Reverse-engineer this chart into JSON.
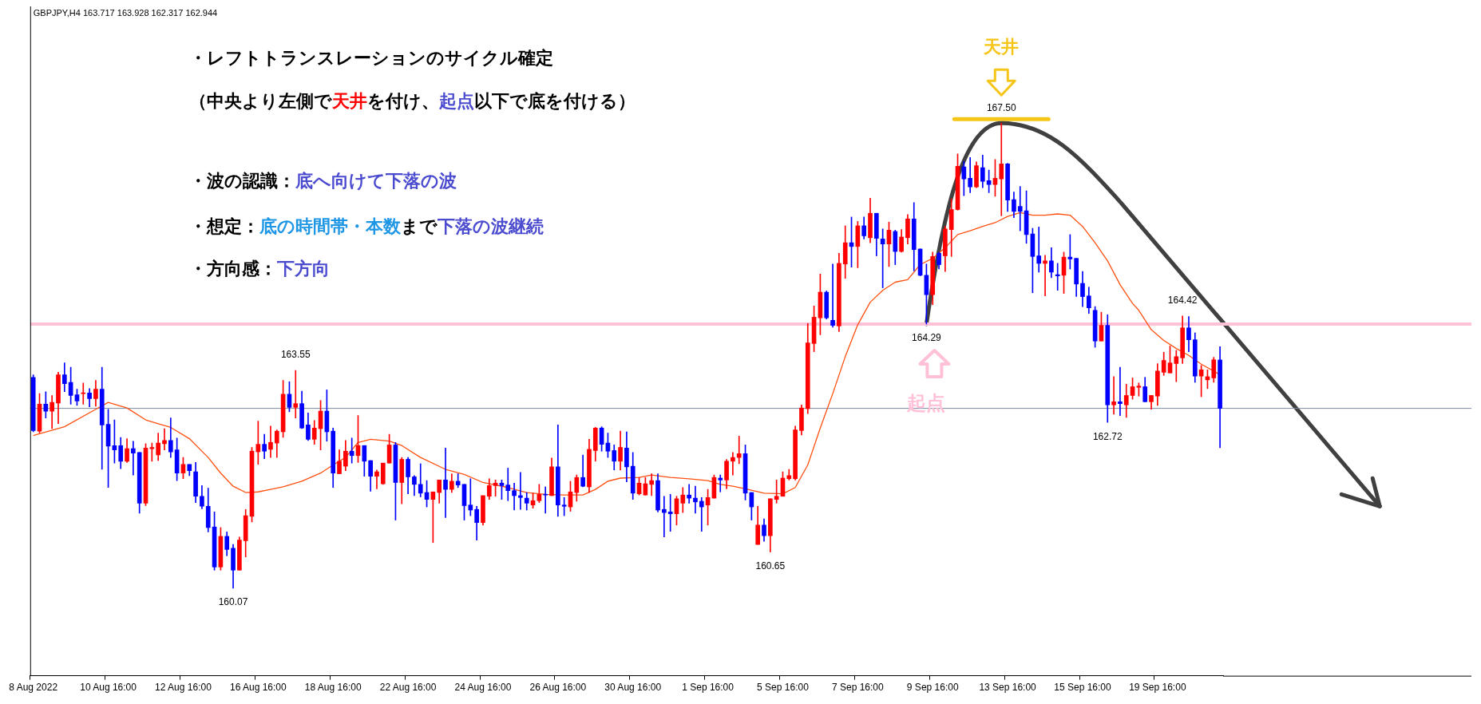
{
  "chart_data": {
    "type": "candlestick",
    "annotations": [
      "GBPJPY,H4 163.717 163.928 162.317 162.944",
      "・レフトトランスレーションのサイクル確定",
      "（中央より左側で",
      "天井",
      "を付け、",
      "起点",
      "以下で底を付ける）",
      "・波の認識：",
      "底へ向けて下落の波",
      "・想定：",
      "底の時間帯・本数",
      "まで",
      "下落の波継続",
      "・方向感：",
      "下方向",
      "天井",
      "起点",
      {
        "text": "167.50",
        "y": 167.5
      },
      {
        "text": "164.29",
        "y": 164.29
      },
      {
        "text": "163.55",
        "y": 163.55
      },
      {
        "text": "160.07",
        "y": 160.07
      },
      {
        "text": "160.65",
        "y": 160.65
      },
      {
        "text": "162.72",
        "y": 162.72
      },
      {
        "text": "164.42",
        "y": 164.42
      }
    ],
    "categories": [
      "8 Aug 2022",
      null,
      null,
      null,
      null,
      null,
      null,
      null,
      null,
      null,
      null,
      null,
      "10 Aug 16:00",
      null,
      null,
      null,
      null,
      null,
      null,
      null,
      null,
      null,
      null,
      null,
      "12 Aug 16:00",
      null,
      null,
      null,
      null,
      null,
      null,
      null,
      null,
      null,
      null,
      null,
      "16 Aug 16:00",
      null,
      null,
      null,
      null,
      null,
      null,
      null,
      null,
      null,
      null,
      null,
      "18 Aug 16:00",
      null,
      null,
      null,
      null,
      null,
      null,
      null,
      null,
      null,
      null,
      null,
      "22 Aug 16:00",
      null,
      null,
      null,
      null,
      null,
      null,
      null,
      null,
      null,
      null,
      null,
      "24 Aug 16:00",
      null,
      null,
      null,
      null,
      null,
      null,
      null,
      null,
      null,
      null,
      null,
      "26 Aug 16:00",
      null,
      null,
      null,
      null,
      null,
      null,
      null,
      null,
      null,
      null,
      null,
      "30 Aug 16:00",
      null,
      null,
      null,
      null,
      null,
      null,
      null,
      null,
      null,
      null,
      null,
      "1 Sep 16:00",
      null,
      null,
      null,
      null,
      null,
      null,
      null,
      null,
      null,
      null,
      null,
      "5 Sep 16:00",
      null,
      null,
      null,
      null,
      null,
      null,
      null,
      null,
      null,
      null,
      null,
      "7 Sep 16:00",
      null,
      null,
      null,
      null,
      null,
      null,
      null,
      null,
      null,
      null,
      null,
      "9 Sep 16:00",
      null,
      null,
      null,
      null,
      null,
      null,
      null,
      null,
      null,
      null,
      null,
      "13 Sep 16:00",
      null,
      null,
      null,
      null,
      null,
      null,
      null,
      null,
      null,
      null,
      null,
      "15 Sep 16:00",
      null,
      null,
      null,
      null,
      null,
      null,
      null,
      null,
      null,
      null,
      null,
      "19 Sep 16:00",
      null,
      null,
      null,
      null,
      null,
      null,
      null,
      null,
      null,
      null
    ],
    "ohlc": [
      [
        163.44,
        163.48,
        162.57,
        162.59
      ],
      [
        162.58,
        163.18,
        162.55,
        163.01
      ],
      [
        163.01,
        163.21,
        162.79,
        162.9
      ],
      [
        162.9,
        163.15,
        162.62,
        163.04
      ],
      [
        163.03,
        163.52,
        162.7,
        163.48
      ],
      [
        163.48,
        163.67,
        163.21,
        163.34
      ],
      [
        163.36,
        163.6,
        163.01,
        163.15
      ],
      [
        163.16,
        163.25,
        162.99,
        163.06
      ],
      [
        163.18,
        163.35,
        163.01,
        163.19
      ],
      [
        163.19,
        163.26,
        162.97,
        163.1
      ],
      [
        163.1,
        163.39,
        162.98,
        163.25
      ],
      [
        163.25,
        163.6,
        161.97,
        162.68
      ],
      [
        162.69,
        162.93,
        161.68,
        162.34
      ],
      [
        162.35,
        162.76,
        162.07,
        162.28
      ],
      [
        162.35,
        162.48,
        161.98,
        162.1
      ],
      [
        162.1,
        162.46,
        162.08,
        162.3
      ],
      [
        162.3,
        162.42,
        161.88,
        162.23
      ],
      [
        162.24,
        162.24,
        161.27,
        161.43
      ],
      [
        161.43,
        162.38,
        161.39,
        162.31
      ],
      [
        162.3,
        162.39,
        162.1,
        162.32
      ],
      [
        162.2,
        162.55,
        162.11,
        162.39
      ],
      [
        162.38,
        162.62,
        162.28,
        162.43
      ],
      [
        162.43,
        162.79,
        162.16,
        162.25
      ],
      [
        162.28,
        162.47,
        161.79,
        161.91
      ],
      [
        161.91,
        162.16,
        161.82,
        162.05
      ],
      [
        162.05,
        162.05,
        161.87,
        161.95
      ],
      [
        161.93,
        162.08,
        161.44,
        161.54
      ],
      [
        161.54,
        161.71,
        161.34,
        161.38
      ],
      [
        161.38,
        161.67,
        160.97,
        161.04
      ],
      [
        161.05,
        161.29,
        160.36,
        160.41
      ],
      [
        160.41,
        161.04,
        160.36,
        160.9
      ],
      [
        160.9,
        160.97,
        160.59,
        160.69
      ],
      [
        160.71,
        160.77,
        160.07,
        160.36
      ],
      [
        160.36,
        160.89,
        160.36,
        160.84
      ],
      [
        160.83,
        161.33,
        160.57,
        161.23
      ],
      [
        161.22,
        162.32,
        161.13,
        162.26
      ],
      [
        162.25,
        162.74,
        162.05,
        162.37
      ],
      [
        162.37,
        162.53,
        162.14,
        162.26
      ],
      [
        162.29,
        162.66,
        162.16,
        162.4
      ],
      [
        162.39,
        162.6,
        162.16,
        162.58
      ],
      [
        162.57,
        163.39,
        162.48,
        163.17
      ],
      [
        163.17,
        163.37,
        162.89,
        162.96
      ],
      [
        162.96,
        163.55,
        162.79,
        163.02
      ],
      [
        163.02,
        163.22,
        162.62,
        162.63
      ],
      [
        162.68,
        162.87,
        162.43,
        162.45
      ],
      [
        162.45,
        162.75,
        162.37,
        162.63
      ],
      [
        162.62,
        163.07,
        162.28,
        162.9
      ],
      [
        162.9,
        163.24,
        162.42,
        162.57
      ],
      [
        162.58,
        162.63,
        161.68,
        161.91
      ],
      [
        161.9,
        162.28,
        161.9,
        162.1
      ],
      [
        162.02,
        162.43,
        161.95,
        162.26
      ],
      [
        162.26,
        162.47,
        162.07,
        162.19
      ],
      [
        162.19,
        162.83,
        162.08,
        162.35
      ],
      [
        162.35,
        162.35,
        161.86,
        162.1
      ],
      [
        162.11,
        162.11,
        161.62,
        161.86
      ],
      [
        161.86,
        161.96,
        161.66,
        161.93
      ],
      [
        161.74,
        162.07,
        161.73,
        162.07
      ],
      [
        162.07,
        162.53,
        162.07,
        162.36
      ],
      [
        162.36,
        162.4,
        161.16,
        161.76
      ],
      [
        161.76,
        162.16,
        161.42,
        162.13
      ],
      [
        162.13,
        162.16,
        161.58,
        161.85
      ],
      [
        161.85,
        161.87,
        161.55,
        161.73
      ],
      [
        161.73,
        162.06,
        161.53,
        161.59
      ],
      [
        161.6,
        161.79,
        161.37,
        161.49
      ],
      [
        161.49,
        161.61,
        160.8,
        161.61
      ],
      [
        161.6,
        161.8,
        161.43,
        161.8
      ],
      [
        161.8,
        162.31,
        161.2,
        161.65
      ],
      [
        161.65,
        161.9,
        161.6,
        161.78
      ],
      [
        161.78,
        161.9,
        161.68,
        161.72
      ],
      [
        161.73,
        161.73,
        161.16,
        161.39
      ],
      [
        161.4,
        161.82,
        161.23,
        161.32
      ],
      [
        161.33,
        161.38,
        160.84,
        161.12
      ],
      [
        161.12,
        161.55,
        161.08,
        161.55
      ],
      [
        161.54,
        161.82,
        161.49,
        161.71
      ],
      [
        161.71,
        161.8,
        161.54,
        161.75
      ],
      [
        161.75,
        161.8,
        161.49,
        161.71
      ],
      [
        161.72,
        161.99,
        161.47,
        161.63
      ],
      [
        161.63,
        161.75,
        161.32,
        161.55
      ],
      [
        161.55,
        161.92,
        161.33,
        161.52
      ],
      [
        161.51,
        161.6,
        161.32,
        161.43
      ],
      [
        161.4,
        161.59,
        161.35,
        161.47
      ],
      [
        161.47,
        161.73,
        161.44,
        161.57
      ],
      [
        161.57,
        161.69,
        161.27,
        161.56
      ],
      [
        161.55,
        162.15,
        161.55,
        162.01
      ],
      [
        162.01,
        162.68,
        161.22,
        161.4
      ],
      [
        161.4,
        161.52,
        161.23,
        161.38
      ],
      [
        161.37,
        161.78,
        161.3,
        161.61
      ],
      [
        161.6,
        161.88,
        161.46,
        161.84
      ],
      [
        161.84,
        162.2,
        161.69,
        161.7
      ],
      [
        161.69,
        162.45,
        161.6,
        162.29
      ],
      [
        162.27,
        162.64,
        162.1,
        162.63
      ],
      [
        162.63,
        162.65,
        162.26,
        162.37
      ],
      [
        162.39,
        162.55,
        162.16,
        162.26
      ],
      [
        162.27,
        162.36,
        161.96,
        162.1
      ],
      [
        162.1,
        162.58,
        161.96,
        162.32
      ],
      [
        162.31,
        162.57,
        161.77,
        162.01
      ],
      [
        162.02,
        162.24,
        161.49,
        161.59
      ],
      [
        161.58,
        161.84,
        161.56,
        161.75
      ],
      [
        161.56,
        161.84,
        161.56,
        161.74
      ],
      [
        161.73,
        161.9,
        161.55,
        161.79
      ],
      [
        161.79,
        161.9,
        161.29,
        161.32
      ],
      [
        161.33,
        161.54,
        160.89,
        161.28
      ],
      [
        161.29,
        161.57,
        160.98,
        161.26
      ],
      [
        161.26,
        161.54,
        161.08,
        161.5
      ],
      [
        161.43,
        161.68,
        161.28,
        161.56
      ],
      [
        161.56,
        161.73,
        161.43,
        161.51
      ],
      [
        161.51,
        161.7,
        161.27,
        161.45
      ],
      [
        161.46,
        161.52,
        160.98,
        161.37
      ],
      [
        161.4,
        161.65,
        161.08,
        161.52
      ],
      [
        161.51,
        161.88,
        161.51,
        161.84
      ],
      [
        161.83,
        161.88,
        161.61,
        161.8
      ],
      [
        161.8,
        162.13,
        161.66,
        162.1
      ],
      [
        162.1,
        162.24,
        161.88,
        162.16
      ],
      [
        162.16,
        162.5,
        162.06,
        162.22
      ],
      [
        162.22,
        162.36,
        161.48,
        161.59
      ],
      [
        161.6,
        161.6,
        161.16,
        161.37
      ],
      [
        160.77,
        161.38,
        160.77,
        161.08
      ],
      [
        161.08,
        161.18,
        160.82,
        160.91
      ],
      [
        160.91,
        161.5,
        160.65,
        161.5
      ],
      [
        161.49,
        161.8,
        161.43,
        161.54
      ],
      [
        161.54,
        161.93,
        161.54,
        161.83
      ],
      [
        161.82,
        161.97,
        161.8,
        161.87
      ],
      [
        161.82,
        162.66,
        161.8,
        162.6
      ],
      [
        162.59,
        163.0,
        162.52,
        162.95
      ],
      [
        162.94,
        164.3,
        162.86,
        163.99
      ],
      [
        163.98,
        164.58,
        163.85,
        164.4
      ],
      [
        164.39,
        165.09,
        164.12,
        164.8
      ],
      [
        164.8,
        164.82,
        164.37,
        164.39
      ],
      [
        164.35,
        165.25,
        164.24,
        164.27
      ],
      [
        164.26,
        165.42,
        164.17,
        165.26
      ],
      [
        165.25,
        165.86,
        165.02,
        165.59
      ],
      [
        165.59,
        166.0,
        165.2,
        165.53
      ],
      [
        165.53,
        165.93,
        165.19,
        165.86
      ],
      [
        165.86,
        166.0,
        165.65,
        165.7
      ],
      [
        165.67,
        166.3,
        165.59,
        166.06
      ],
      [
        166.06,
        166.06,
        165.38,
        165.66
      ],
      [
        165.65,
        165.81,
        164.87,
        165.57
      ],
      [
        165.57,
        165.92,
        165.21,
        165.79
      ],
      [
        165.77,
        165.79,
        165.24,
        165.45
      ],
      [
        165.45,
        165.8,
        165.44,
        165.68
      ],
      [
        165.67,
        166.04,
        165.57,
        165.97
      ],
      [
        165.97,
        166.23,
        165.14,
        165.48
      ],
      [
        165.49,
        165.49,
        165.06,
        165.07
      ],
      [
        165.07,
        165.25,
        164.29,
        164.76
      ],
      [
        164.76,
        165.44,
        164.6,
        165.37
      ],
      [
        165.42,
        165.44,
        165.17,
        165.24
      ],
      [
        165.38,
        165.85,
        165.13,
        165.81
      ],
      [
        165.8,
        166.29,
        165.37,
        166.12
      ],
      [
        166.12,
        167.01,
        166.11,
        166.81
      ],
      [
        166.8,
        166.89,
        166.34,
        166.61
      ],
      [
        166.62,
        166.95,
        166.39,
        166.48
      ],
      [
        166.48,
        166.88,
        166.47,
        166.82
      ],
      [
        166.79,
        166.99,
        166.47,
        166.57
      ],
      [
        166.58,
        166.75,
        166.39,
        166.52
      ],
      [
        166.52,
        166.92,
        166.33,
        166.62
      ],
      [
        166.61,
        167.5,
        166.02,
        166.85
      ],
      [
        166.85,
        166.86,
        166.09,
        166.27
      ],
      [
        166.28,
        166.4,
        165.99,
        166.09
      ],
      [
        166.17,
        166.49,
        165.78,
        166.09
      ],
      [
        166.1,
        166.42,
        165.58,
        165.72
      ],
      [
        165.73,
        165.82,
        164.79,
        165.37
      ],
      [
        165.38,
        165.84,
        165.12,
        165.26
      ],
      [
        165.26,
        165.39,
        164.74,
        165.3
      ],
      [
        165.3,
        165.51,
        165.03,
        165.12
      ],
      [
        165.08,
        165.26,
        164.83,
        165.06
      ],
      [
        165.07,
        165.44,
        164.78,
        165.36
      ],
      [
        165.36,
        165.72,
        165.17,
        165.33
      ],
      [
        165.34,
        165.34,
        164.73,
        164.93
      ],
      [
        164.94,
        165.13,
        164.57,
        164.73
      ],
      [
        164.74,
        164.88,
        164.46,
        164.55
      ],
      [
        164.51,
        164.57,
        163.92,
        164.02
      ],
      [
        164.02,
        164.48,
        164.02,
        164.27
      ],
      [
        164.27,
        164.44,
        162.72,
        163.0
      ],
      [
        163.0,
        163.45,
        162.85,
        163.05
      ],
      [
        163.05,
        163.6,
        162.83,
        163.02
      ],
      [
        163.0,
        163.33,
        162.8,
        163.15
      ],
      [
        163.15,
        163.43,
        163.09,
        163.29
      ],
      [
        163.28,
        163.35,
        163.14,
        163.3
      ],
      [
        163.29,
        163.44,
        163.05,
        163.05
      ],
      [
        163.05,
        163.15,
        162.93,
        163.15
      ],
      [
        163.14,
        163.66,
        162.99,
        163.54
      ],
      [
        163.52,
        163.84,
        163.47,
        163.71
      ],
      [
        163.51,
        163.94,
        163.51,
        163.67
      ],
      [
        163.66,
        163.87,
        163.37,
        163.77
      ],
      [
        163.75,
        164.42,
        163.66,
        164.23
      ],
      [
        164.23,
        164.41,
        163.85,
        164.04
      ],
      [
        164.04,
        164.15,
        163.36,
        163.46
      ],
      [
        163.46,
        163.63,
        163.13,
        163.56
      ],
      [
        163.4,
        163.56,
        163.26,
        163.45
      ],
      [
        163.43,
        163.76,
        163.36,
        163.72
      ],
      [
        163.717,
        163.928,
        162.317,
        162.944
      ]
    ],
    "colors": [
      "#0000ff",
      "#ff0000",
      "#0000ff",
      "#ff0000",
      "#ff0000",
      "#0000ff",
      "#0000ff",
      "#0000ff",
      "#ff0000",
      "#0000ff",
      "#ff0000",
      "#0000ff",
      "#0000ff",
      "#0000ff",
      "#0000ff",
      "#ff0000",
      "#0000ff",
      "#0000ff",
      "#ff0000",
      "#ff0000",
      "#ff0000",
      "#ff0000",
      "#0000ff",
      "#0000ff",
      "#ff0000",
      "#0000ff",
      "#0000ff",
      "#0000ff",
      "#0000ff",
      "#0000ff",
      "#ff0000",
      "#0000ff",
      "#0000ff",
      "#ff0000",
      "#ff0000",
      "#ff0000",
      "#ff0000",
      "#0000ff",
      "#ff0000",
      "#ff0000",
      "#ff0000",
      "#0000ff",
      "#ff0000",
      "#0000ff",
      "#0000ff",
      "#ff0000",
      "#ff0000",
      "#0000ff",
      "#0000ff",
      "#ff0000",
      "#ff0000",
      "#0000ff",
      "#ff0000",
      "#0000ff",
      "#0000ff",
      "#ff0000",
      "#ff0000",
      "#ff0000",
      "#0000ff",
      "#ff0000",
      "#0000ff",
      "#0000ff",
      "#0000ff",
      "#0000ff",
      "#ff0000",
      "#ff0000",
      "#0000ff",
      "#ff0000",
      "#0000ff",
      "#0000ff",
      "#0000ff",
      "#0000ff",
      "#ff0000",
      "#ff0000",
      "#ff0000",
      "#0000ff",
      "#0000ff",
      "#0000ff",
      "#0000ff",
      "#0000ff",
      "#ff0000",
      "#ff0000",
      "#0000ff",
      "#ff0000",
      "#0000ff",
      "#0000ff",
      "#ff0000",
      "#ff0000",
      "#0000ff",
      "#ff0000",
      "#ff0000",
      "#0000ff",
      "#0000ff",
      "#0000ff",
      "#ff0000",
      "#0000ff",
      "#0000ff",
      "#ff0000",
      "#ff0000",
      "#ff0000",
      "#0000ff",
      "#0000ff",
      "#0000ff",
      "#ff0000",
      "#ff0000",
      "#0000ff",
      "#0000ff",
      "#0000ff",
      "#ff0000",
      "#ff0000",
      "#0000ff",
      "#ff0000",
      "#ff0000",
      "#ff0000",
      "#0000ff",
      "#0000ff",
      "#ff0000",
      "#0000ff",
      "#ff0000",
      "#ff0000",
      "#ff0000",
      "#ff0000",
      "#ff0000",
      "#ff0000",
      "#ff0000",
      "#ff0000",
      "#ff0000",
      "#0000ff",
      "#0000ff",
      "#ff0000",
      "#ff0000",
      "#0000ff",
      "#ff0000",
      "#0000ff",
      "#ff0000",
      "#0000ff",
      "#0000ff",
      "#ff0000",
      "#0000ff",
      "#ff0000",
      "#ff0000",
      "#0000ff",
      "#0000ff",
      "#0000ff",
      "#ff0000",
      "#0000ff",
      "#ff0000",
      "#ff0000",
      "#ff0000",
      "#0000ff",
      "#0000ff",
      "#ff0000",
      "#0000ff",
      "#0000ff",
      "#ff0000",
      "#ff0000",
      "#0000ff",
      "#0000ff",
      "#0000ff",
      "#0000ff",
      "#0000ff",
      "#0000ff",
      "#ff0000",
      "#0000ff",
      "#0000ff",
      "#ff0000",
      "#0000ff",
      "#0000ff",
      "#0000ff",
      "#0000ff",
      "#0000ff",
      "#ff0000",
      "#0000ff",
      "#ff0000",
      "#0000ff",
      "#ff0000",
      "#ff0000",
      "#ff0000",
      "#0000ff",
      "#ff0000",
      "#ff0000",
      "#ff0000",
      "#ff0000",
      "#ff0000",
      "#ff0000",
      "#0000ff",
      "#0000ff",
      "#ff0000",
      "#ff0000",
      "#ff0000",
      "#0000ff"
    ],
    "series": [
      {
        "type": "line",
        "color": "#ff5010",
        "values": [
          162.51,
          null,
          null,
          null,
          null,
          162.65,
          null,
          null,
          null,
          null,
          162.93,
          null,
          163.04,
          null,
          null,
          162.95,
          null,
          null,
          162.76,
          null,
          162.7,
          null,
          162.64,
          null,
          null,
          162.46,
          null,
          null,
          162.16,
          null,
          161.91,
          null,
          161.7,
          null,
          161.6,
          null,
          161.61,
          null,
          161.65,
          null,
          161.69,
          null,
          null,
          161.78,
          null,
          null,
          161.91,
          null,
          162.04,
          null,
          162.16,
          null,
          162.4,
          null,
          162.45,
          null,
          null,
          162.42,
          null,
          162.35,
          null,
          null,
          162.16,
          null,
          null,
          null,
          161.97,
          null,
          null,
          161.89,
          null,
          null,
          161.76,
          null,
          161.72,
          null,
          161.68,
          null,
          null,
          161.6,
          null,
          null,
          161.57,
          null,
          null,
          161.56,
          null,
          null,
          161.56,
          null,
          161.65,
          null,
          161.78,
          null,
          161.83,
          null,
          null,
          161.84,
          null,
          161.88,
          null,
          null,
          161.84,
          null,
          null,
          161.82,
          null,
          null,
          161.79,
          null,
          161.73,
          null,
          161.7,
          null,
          161.66,
          null,
          null,
          161.59,
          null,
          null,
          161.58,
          null,
          161.68,
          null,
          162.04,
          null,
          162.63,
          null,
          163.18,
          null,
          163.77,
          null,
          164.28,
          null,
          164.64,
          null,
          164.83,
          null,
          164.96,
          null,
          165.0,
          null,
          165.24,
          null,
          165.34,
          null,
          165.51,
          null,
          165.72,
          null,
          165.78,
          null,
          165.85,
          null,
          165.91,
          null,
          166.01,
          null,
          166.07,
          null,
          166.03,
          null,
          166.03,
          null,
          166.05,
          null,
          166.03,
          null,
          165.85,
          null,
          165.59,
          null,
          165.3,
          null,
          164.92,
          null,
          164.62,
          164.51,
          null,
          164.2,
          null,
          164.03,
          null,
          163.9,
          null,
          163.79,
          null,
          163.65,
          null,
          163.54,
          163.48
        ]
      }
    ],
    "ref_lines": [
      {
        "axis": "y",
        "value": 164.29,
        "color": "#ffc0d8"
      },
      {
        "axis": "y",
        "value": 162.944,
        "color": "#7b8ba3"
      }
    ],
    "tick_labels": "x"
  }
}
